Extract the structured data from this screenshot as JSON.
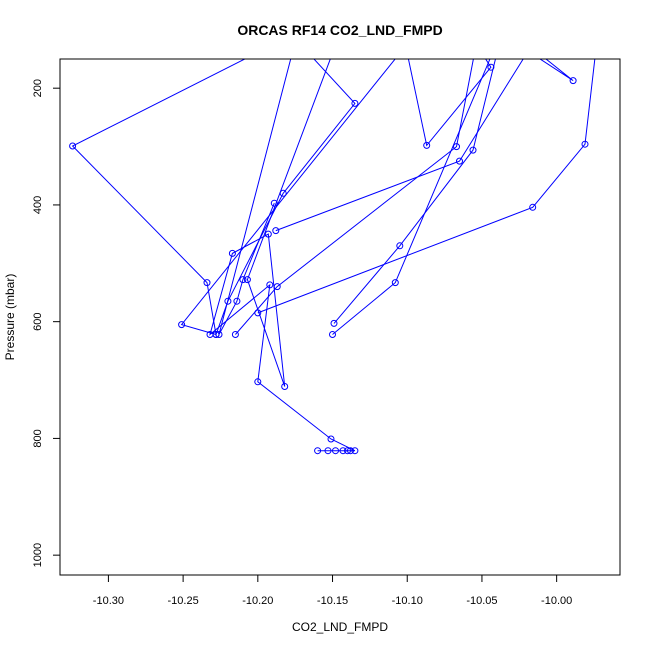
{
  "chart_data": {
    "type": "line",
    "title": "ORCAS RF14 CO2_LND_FMPD",
    "xlabel": "CO2_LND_FMPD",
    "ylabel": "Pressure (mbar)",
    "xlim": [
      -10.3324,
      -9.9576
    ],
    "ylim": [
      1034,
      150
    ],
    "y_inverted": true,
    "x_ticks": [
      -10.3,
      -10.25,
      -10.2,
      -10.15,
      -10.1,
      -10.05,
      -10.0
    ],
    "x_tick_labels": [
      "-10.30",
      "-10.25",
      "-10.20",
      "-10.15",
      "-10.10",
      "-10.05",
      "-10.00"
    ],
    "y_ticks": [
      200,
      400,
      600,
      800,
      1000
    ],
    "y_tick_labels": [
      "200",
      "400",
      "600",
      "800",
      "1000"
    ],
    "grid": false,
    "legend": "none",
    "series": [
      {
        "color": "#0000ff",
        "marker": "open-circle",
        "points": [
          {
            "x": -10.16,
            "y": 821
          },
          {
            "x": -10.153,
            "y": 821
          },
          {
            "x": -10.148,
            "y": 821
          },
          {
            "x": -10.143,
            "y": 821
          },
          {
            "x": -10.14,
            "y": 821
          },
          {
            "x": -10.138,
            "y": 821
          },
          {
            "x": -10.135,
            "y": 821
          },
          {
            "x": -10.151,
            "y": 801
          },
          {
            "x": -10.2,
            "y": 703
          },
          {
            "x": -10.192,
            "y": 537
          },
          {
            "x": -10.232,
            "y": 622
          },
          {
            "x": -10.217,
            "y": 483
          },
          {
            "x": -10.193,
            "y": 450
          },
          {
            "x": -10.182,
            "y": 711
          },
          {
            "x": -10.207,
            "y": 528
          },
          {
            "x": -10.15,
            "y": 140
          }
        ]
      },
      {
        "color": "#0000ff",
        "marker": "open-circle",
        "points": [
          {
            "x": -10.201,
            "y": 140
          },
          {
            "x": -10.324,
            "y": 299
          },
          {
            "x": -10.234,
            "y": 533
          },
          {
            "x": -10.228,
            "y": 622
          },
          {
            "x": -10.22,
            "y": 565
          },
          {
            "x": -10.183,
            "y": 380
          },
          {
            "x": -10.135,
            "y": 226
          },
          {
            "x": -10.166,
            "y": 140
          }
        ]
      },
      {
        "color": "#0000ff",
        "marker": "open-circle",
        "points": [
          {
            "x": -10.228,
            "y": 622
          },
          {
            "x": -10.251,
            "y": 605
          },
          {
            "x": -10.105,
            "y": 140
          }
        ]
      },
      {
        "color": "#0000ff",
        "marker": "open-circle",
        "points": [
          {
            "x": -10.215,
            "y": 622
          },
          {
            "x": -10.187,
            "y": 540
          },
          {
            "x": -10.067,
            "y": 300
          },
          {
            "x": -10.055,
            "y": 140
          }
        ]
      },
      {
        "color": "#0000ff",
        "marker": "open-circle",
        "points": [
          {
            "x": -10.2,
            "y": 585
          },
          {
            "x": -10.016,
            "y": 404
          },
          {
            "x": -9.981,
            "y": 296
          },
          {
            "x": -9.974,
            "y": 140
          }
        ]
      },
      {
        "color": "#0000ff",
        "marker": "open-circle",
        "points": [
          {
            "x": -10.189,
            "y": 397
          },
          {
            "x": -10.21,
            "y": 528
          },
          {
            "x": -10.214,
            "y": 565
          },
          {
            "x": -10.226,
            "y": 622
          },
          {
            "x": -10.177,
            "y": 140
          }
        ]
      },
      {
        "color": "#0000ff",
        "marker": "open-circle",
        "points": [
          {
            "x": -10.15,
            "y": 622
          },
          {
            "x": -10.108,
            "y": 533
          },
          {
            "x": -10.043,
            "y": 140
          }
        ]
      },
      {
        "color": "#0000ff",
        "marker": "open-circle",
        "points": [
          {
            "x": -10.149,
            "y": 603
          },
          {
            "x": -10.105,
            "y": 470
          },
          {
            "x": -10.056,
            "y": 306
          },
          {
            "x": -10.04,
            "y": 140
          }
        ]
      },
      {
        "color": "#0000ff",
        "marker": "open-circle",
        "points": [
          {
            "x": -10.188,
            "y": 444
          },
          {
            "x": -10.065,
            "y": 325
          },
          {
            "x": -10.02,
            "y": 140
          }
        ]
      },
      {
        "color": "#0000ff",
        "marker": "open-circle",
        "points": [
          {
            "x": -10.1,
            "y": 140
          },
          {
            "x": -10.087,
            "y": 298
          },
          {
            "x": -10.044,
            "y": 164
          },
          {
            "x": -10.05,
            "y": 140
          }
        ]
      },
      {
        "color": "#0000ff",
        "marker": "open-circle",
        "points": [
          {
            "x": -10.017,
            "y": 140
          },
          {
            "x": -9.989,
            "y": 187
          },
          {
            "x": -10.012,
            "y": 140
          }
        ]
      }
    ]
  }
}
